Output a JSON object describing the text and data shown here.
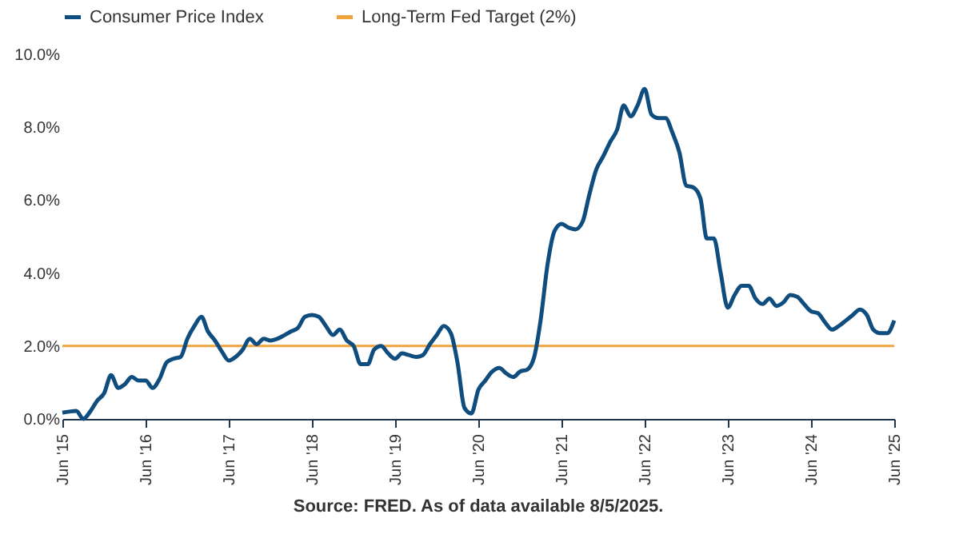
{
  "chart_data": {
    "type": "line",
    "x": [
      "2015-06",
      "2015-07",
      "2015-08",
      "2015-09",
      "2015-10",
      "2015-11",
      "2015-12",
      "2016-01",
      "2016-02",
      "2016-03",
      "2016-04",
      "2016-05",
      "2016-06",
      "2016-07",
      "2016-08",
      "2016-09",
      "2016-10",
      "2016-11",
      "2016-12",
      "2017-01",
      "2017-02",
      "2017-03",
      "2017-04",
      "2017-05",
      "2017-06",
      "2017-07",
      "2017-08",
      "2017-09",
      "2017-10",
      "2017-11",
      "2017-12",
      "2018-01",
      "2018-02",
      "2018-03",
      "2018-04",
      "2018-05",
      "2018-06",
      "2018-07",
      "2018-08",
      "2018-09",
      "2018-10",
      "2018-11",
      "2018-12",
      "2019-01",
      "2019-02",
      "2019-03",
      "2019-04",
      "2019-05",
      "2019-06",
      "2019-07",
      "2019-08",
      "2019-09",
      "2019-10",
      "2019-11",
      "2019-12",
      "2020-01",
      "2020-02",
      "2020-03",
      "2020-04",
      "2020-05",
      "2020-06",
      "2020-07",
      "2020-08",
      "2020-09",
      "2020-10",
      "2020-11",
      "2020-12",
      "2021-01",
      "2021-02",
      "2021-03",
      "2021-04",
      "2021-05",
      "2021-06",
      "2021-07",
      "2021-08",
      "2021-09",
      "2021-10",
      "2021-11",
      "2021-12",
      "2022-01",
      "2022-02",
      "2022-03",
      "2022-04",
      "2022-05",
      "2022-06",
      "2022-07",
      "2022-08",
      "2022-09",
      "2022-10",
      "2022-11",
      "2022-12",
      "2023-01",
      "2023-02",
      "2023-03",
      "2023-04",
      "2023-05",
      "2023-06",
      "2023-07",
      "2023-08",
      "2023-09",
      "2023-10",
      "2023-11",
      "2023-12",
      "2024-01",
      "2024-02",
      "2024-03",
      "2024-04",
      "2024-05",
      "2024-06",
      "2024-07",
      "2024-08",
      "2024-09",
      "2024-10",
      "2024-11",
      "2024-12",
      "2025-01",
      "2025-02",
      "2025-03",
      "2025-04",
      "2025-05",
      "2025-06"
    ],
    "series": [
      {
        "name": "Consumer Price Index",
        "color": "#0e4d7e",
        "values": [
          0.17,
          0.2,
          0.22,
          0.0,
          0.2,
          0.5,
          0.7,
          1.2,
          0.85,
          0.95,
          1.15,
          1.05,
          1.05,
          0.85,
          1.1,
          1.55,
          1.65,
          1.7,
          2.2,
          2.55,
          2.8,
          2.4,
          2.15,
          1.85,
          1.6,
          1.7,
          1.9,
          2.2,
          2.05,
          2.2,
          2.15,
          2.2,
          2.3,
          2.4,
          2.5,
          2.8,
          2.85,
          2.8,
          2.55,
          2.3,
          2.45,
          2.15,
          2.0,
          1.5,
          1.5,
          1.9,
          2.0,
          1.8,
          1.65,
          1.8,
          1.75,
          1.7,
          1.75,
          2.05,
          2.3,
          2.55,
          2.35,
          1.55,
          0.3,
          0.15,
          0.8,
          1.05,
          1.3,
          1.4,
          1.25,
          1.15,
          1.3,
          1.35,
          1.7,
          2.7,
          4.25,
          5.15,
          5.35,
          5.25,
          5.2,
          5.4,
          6.15,
          6.85,
          7.2,
          7.6,
          7.95,
          8.6,
          8.3,
          8.6,
          9.05,
          8.35,
          8.25,
          8.25,
          7.85,
          7.3,
          6.4,
          6.35,
          6.05,
          4.95,
          4.95,
          4.0,
          3.05,
          3.4,
          3.65,
          3.65,
          3.3,
          3.15,
          3.3,
          3.1,
          3.2,
          3.4,
          3.35,
          3.15,
          2.95,
          2.9,
          2.65,
          2.45,
          2.55,
          2.7,
          2.85,
          3.0,
          2.85,
          2.45,
          2.35,
          2.35,
          2.7
        ]
      }
    ],
    "ref_lines": [
      {
        "axis": "y",
        "value": 2,
        "label": "Long-Term Fed Target (2%)",
        "color": "#f0a23c"
      }
    ],
    "xlim": [
      "2015-06",
      "2025-06"
    ],
    "xticks": [
      {
        "value": "2015-06",
        "label": "Jun '15"
      },
      {
        "value": "2016-06",
        "label": "Jun '16"
      },
      {
        "value": "2017-06",
        "label": "Jun '17"
      },
      {
        "value": "2018-06",
        "label": "Jun '18"
      },
      {
        "value": "2019-06",
        "label": "Jun '19"
      },
      {
        "value": "2020-06",
        "label": "Jun '20"
      },
      {
        "value": "2021-06",
        "label": "Jun '21"
      },
      {
        "value": "2022-06",
        "label": "Jun '22"
      },
      {
        "value": "2023-06",
        "label": "Jun '23"
      },
      {
        "value": "2024-06",
        "label": "Jun '24"
      },
      {
        "value": "2025-06",
        "label": "Jun '25"
      }
    ],
    "ylim": [
      0,
      10
    ],
    "yticks": [
      {
        "value": 0,
        "label": "0.0%"
      },
      {
        "value": 2,
        "label": "2.0%"
      },
      {
        "value": 4,
        "label": "4.0%"
      },
      {
        "value": 6,
        "label": "6.0%"
      },
      {
        "value": 8,
        "label": "8.0%"
      },
      {
        "value": 10,
        "label": "10.0%"
      }
    ],
    "grid": false,
    "legend": "top",
    "marker": "none",
    "line_style": "solid",
    "annotations": [
      "Source: FRED. As of data available 8/5/2025."
    ]
  }
}
